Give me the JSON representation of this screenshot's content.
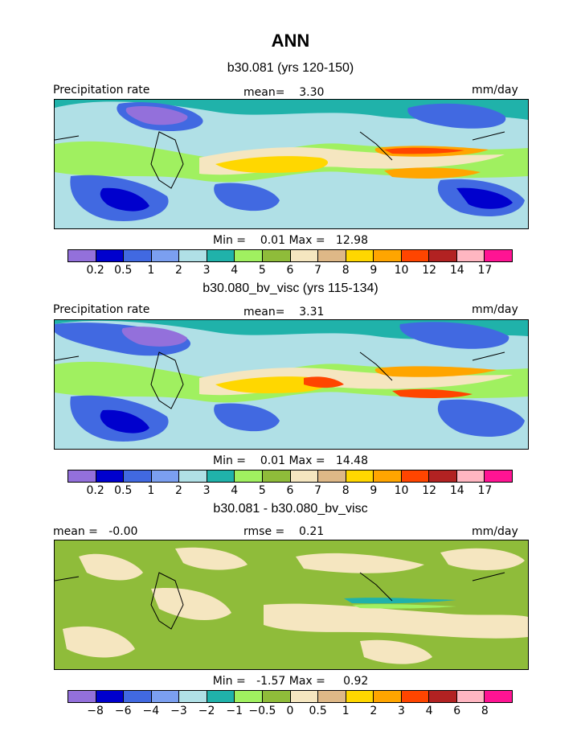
{
  "title": "ANN",
  "panels": [
    {
      "subtitle": "b30.081 (yrs 120-150)",
      "left_label": "Precipitation rate",
      "center_label": "mean=    3.30",
      "right_label": "mm/day",
      "minmax": "Min =    0.01 Max =   12.98",
      "ticks": [
        "0.2",
        "0.5",
        "1",
        "2",
        "3",
        "4",
        "5",
        "6",
        "7",
        "8",
        "9",
        "10",
        "12",
        "14",
        "17"
      ],
      "colors": [
        "#9370db",
        "#0000cd",
        "#4169e1",
        "#7b9ff0",
        "#b0e0e6",
        "#20b2aa",
        "#a0f060",
        "#8fbc3a",
        "#f5e6c0",
        "#deb887",
        "#ffd700",
        "#ffa500",
        "#ff4500",
        "#b22222",
        "#ffb6c1",
        "#ff1493"
      ]
    },
    {
      "subtitle": "b30.080_bv_visc (yrs 115-134)",
      "left_label": "Precipitation rate",
      "center_label": "mean=    3.31",
      "right_label": "mm/day",
      "minmax": "Min =    0.01 Max =   14.48",
      "ticks": [
        "0.2",
        "0.5",
        "1",
        "2",
        "3",
        "4",
        "5",
        "6",
        "7",
        "8",
        "9",
        "10",
        "12",
        "14",
        "17"
      ],
      "colors": [
        "#9370db",
        "#0000cd",
        "#4169e1",
        "#7b9ff0",
        "#b0e0e6",
        "#20b2aa",
        "#a0f060",
        "#8fbc3a",
        "#f5e6c0",
        "#deb887",
        "#ffd700",
        "#ffa500",
        "#ff4500",
        "#b22222",
        "#ffb6c1",
        "#ff1493"
      ]
    },
    {
      "subtitle": "b30.081 - b30.080_bv_visc",
      "left_label": "mean =   -0.00",
      "center_label": "rmse =    0.21",
      "right_label": "mm/day",
      "minmax": "Min =   -1.57 Max =     0.92",
      "ticks": [
        "-8",
        "-6",
        "-4",
        "-3",
        "-2",
        "-1",
        "-0.5",
        "0",
        "0.5",
        "1",
        "2",
        "3",
        "4",
        "6",
        "8"
      ],
      "colors": [
        "#9370db",
        "#0000cd",
        "#4169e1",
        "#7b9ff0",
        "#b0e0e6",
        "#20b2aa",
        "#a0f060",
        "#8fbc3a",
        "#f5e6c0",
        "#deb887",
        "#ffd700",
        "#ffa500",
        "#ff4500",
        "#b22222",
        "#ffb6c1",
        "#ff1493"
      ]
    }
  ]
}
